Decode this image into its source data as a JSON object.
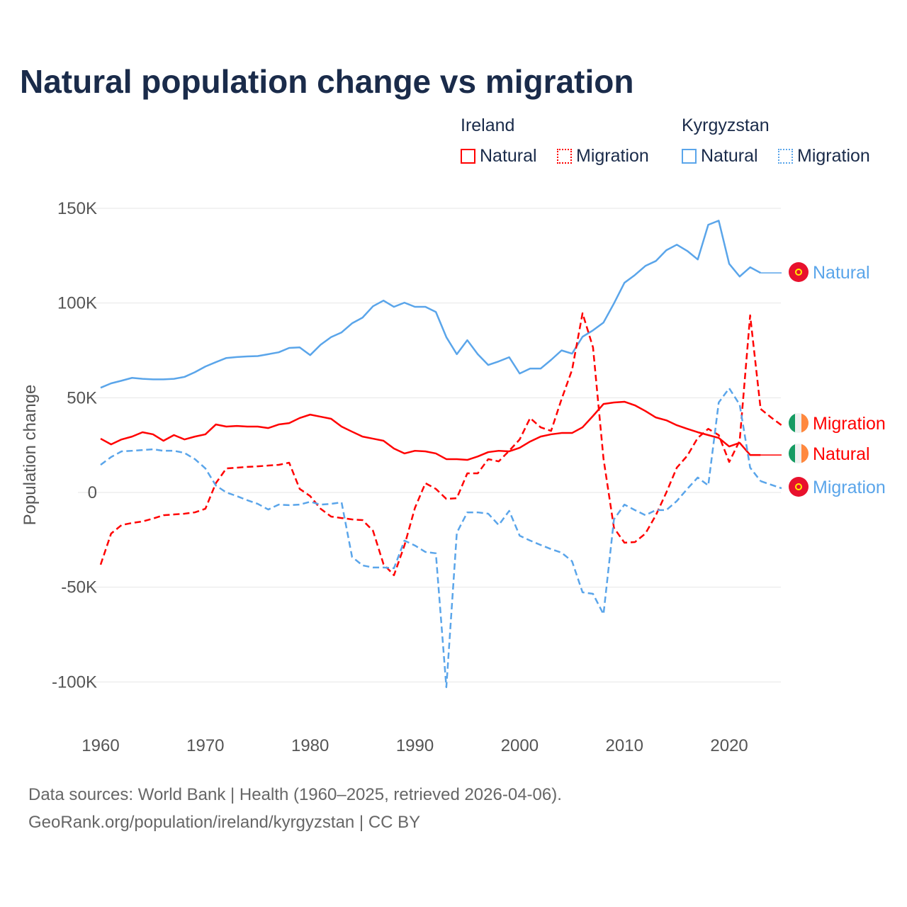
{
  "title": "Natural population change vs migration",
  "legend": {
    "groups": [
      {
        "name": "Ireland",
        "color": "#ff0000",
        "items": [
          "Natural",
          "Migration"
        ]
      },
      {
        "name": "Kyrgyzstan",
        "color": "#5aa5ea",
        "items": [
          "Natural",
          "Migration"
        ]
      }
    ]
  },
  "footer": {
    "line1": "Data sources: World Bank | Health (1960–2025, retrieved 2026-04-06).",
    "line2": "GeoRank.org/population/ireland/kyrgyzstan | CC BY"
  },
  "chart_data": {
    "type": "line",
    "title": "Natural population change vs migration",
    "xlabel": "",
    "ylabel": "Population change",
    "xlim": [
      1960,
      2025
    ],
    "ylim": [
      -100000,
      150000
    ],
    "xticks": [
      {
        "v": 1960,
        "label": "1960"
      },
      {
        "v": 1970,
        "label": "1970"
      },
      {
        "v": 1980,
        "label": "1980"
      },
      {
        "v": 1990,
        "label": "1990"
      },
      {
        "v": 2000,
        "label": "2000"
      },
      {
        "v": 2010,
        "label": "2010"
      },
      {
        "v": 2020,
        "label": "2020"
      }
    ],
    "yticks": [
      {
        "v": 150000,
        "label": "150K"
      },
      {
        "v": 100000,
        "label": "100K"
      },
      {
        "v": 50000,
        "label": "50K"
      },
      {
        "v": 0,
        "label": "0"
      },
      {
        "v": -50000,
        "label": "-50K"
      },
      {
        "v": -100000,
        "label": "-100K"
      }
    ],
    "grid": true,
    "legend_placement": "top-right",
    "x_start": 1960,
    "series": [
      {
        "name": "Kyrgyzstan Natural",
        "country": "Kyrgyzstan",
        "kind": "Natural",
        "color": "#5aa5ea",
        "dashed": false,
        "end_label": "Natural",
        "flag": "kyrgyzstan-flag",
        "values": [
          55.3,
          57.6,
          59,
          60.5,
          60,
          59.7,
          59.7,
          60,
          61,
          63.5,
          66.5,
          68.8,
          71,
          71.5,
          71.8,
          72,
          73,
          74,
          76.3,
          76.6,
          72.5,
          78,
          82,
          84.5,
          89.3,
          92.3,
          98.3,
          101.3,
          98,
          100.2,
          98,
          98,
          95.3,
          82,
          73,
          80.4,
          73,
          67.3,
          69.2,
          71.4,
          62.8,
          65.4,
          65.4,
          70,
          75,
          73.3,
          82.2,
          85.6,
          89.7,
          99.8,
          110.7,
          114.8,
          119.6,
          122.2,
          127.9,
          130.8,
          127.5,
          123,
          141.3,
          143.5,
          120.7,
          114,
          118.9,
          115.9,
          115.9,
          115.9
        ]
      },
      {
        "name": "Ireland Natural",
        "country": "Ireland",
        "kind": "Natural",
        "color": "#ff0000",
        "dashed": false,
        "end_label": "Natural",
        "flag": "ireland-flag",
        "values": [
          28.4,
          25.4,
          28,
          29.5,
          31.8,
          30.7,
          27.3,
          30.3,
          28,
          29.5,
          30.7,
          35.9,
          34.8,
          35.1,
          34.8,
          34.8,
          34,
          35.9,
          36.6,
          39.3,
          41.1,
          40,
          38.9,
          34.8,
          32.1,
          29.5,
          28.4,
          27.3,
          23.2,
          20.6,
          22,
          21.7,
          20.6,
          17.6,
          17.6,
          17.2,
          19,
          21.3,
          22,
          21.7,
          23.6,
          26.9,
          29.5,
          30.7,
          31.4,
          31.4,
          34.4,
          40.4,
          46.7,
          47.5,
          47.9,
          46,
          43,
          39.6,
          38.1,
          35.5,
          33.6,
          31.8,
          30.3,
          28.8,
          24.3,
          26.2,
          19.8,
          19.8,
          19.8,
          19.8
        ]
      },
      {
        "name": "Ireland Migration",
        "country": "Ireland",
        "kind": "Migration",
        "color": "#ff0000",
        "dashed": true,
        "end_label": "Migration",
        "flag": "ireland-flag",
        "values": [
          -38.1,
          -21.7,
          -17.2,
          -16.1,
          -15.3,
          -13.8,
          -12,
          -11.6,
          -11.2,
          -10.5,
          -8.6,
          4.9,
          12.7,
          13.1,
          13.5,
          13.8,
          14.2,
          14.6,
          15.7,
          1.9,
          -1.9,
          -8.6,
          -12.7,
          -13.5,
          -14.2,
          -14.6,
          -20.2,
          -37.8,
          -43.7,
          -28,
          -8.2,
          4.9,
          1.9,
          -3.4,
          -3,
          10.1,
          10.1,
          17.6,
          16.4,
          22,
          28,
          39.3,
          34.4,
          32.5,
          49.3,
          64.7,
          94.6,
          76.6,
          17.9,
          -18.7,
          -26.5,
          -26.2,
          -21.7,
          -12,
          0,
          13.1,
          19.4,
          28.8,
          33.6,
          30.3,
          16.1,
          27.3,
          93.5,
          44.1,
          39.6,
          35.5
        ]
      },
      {
        "name": "Kyrgyzstan Migration",
        "country": "Kyrgyzstan",
        "kind": "Migration",
        "color": "#5aa5ea",
        "dashed": true,
        "end_label": "Migration",
        "flag": "kyrgyzstan-flag",
        "values": [
          14.6,
          18.7,
          21.7,
          22,
          22.4,
          22.8,
          22,
          22,
          20.9,
          17.6,
          12.7,
          3.7,
          0,
          -1.9,
          -4.1,
          -6,
          -9,
          -6.4,
          -6.7,
          -6.4,
          -4.9,
          -6.4,
          -6,
          -5.2,
          -34,
          -38.5,
          -39.6,
          -39.6,
          -40,
          -25.4,
          -28,
          -31.4,
          -32.1,
          -102.8,
          -21.3,
          -10.5,
          -10.5,
          -11.2,
          -17.2,
          -9.7,
          -22.8,
          -25.4,
          -27.7,
          -29.9,
          -31.8,
          -36.3,
          -52.7,
          -53.5,
          -64.3,
          -14.2,
          -6.4,
          -9.3,
          -12,
          -9.3,
          -9.3,
          -4.5,
          1.9,
          7.9,
          3.7,
          47.5,
          55,
          46.4,
          13.1,
          6,
          4.1,
          2.2
        ]
      }
    ],
    "value_unit": "thousands"
  }
}
